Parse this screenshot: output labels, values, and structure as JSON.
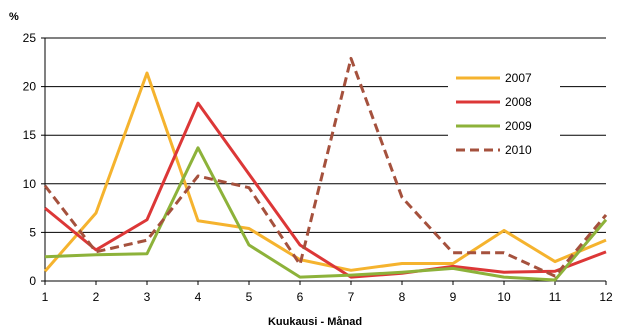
{
  "chart_data": {
    "type": "line",
    "title": "",
    "ylabel": "%",
    "xlabel": "Kuukausi - Månad",
    "x": [
      1,
      2,
      3,
      4,
      5,
      6,
      7,
      8,
      9,
      10,
      11,
      12
    ],
    "ylim": [
      0,
      25
    ],
    "yticks": [
      0,
      5,
      10,
      15,
      20,
      25
    ],
    "grid": "horizontal",
    "legend": "right",
    "series": [
      {
        "name": "2007",
        "color": "#F5B32E",
        "dash": "solid",
        "values": [
          1.0,
          7.0,
          21.4,
          6.2,
          5.4,
          2.2,
          1.1,
          1.8,
          1.8,
          5.2,
          2.0,
          4.2
        ]
      },
      {
        "name": "2008",
        "color": "#DC3737",
        "dash": "solid",
        "values": [
          7.5,
          3.2,
          6.3,
          18.3,
          11.0,
          3.7,
          0.4,
          0.8,
          1.5,
          0.9,
          1.0,
          3.0
        ]
      },
      {
        "name": "2009",
        "color": "#8DB23A",
        "dash": "solid",
        "values": [
          2.5,
          2.7,
          2.8,
          13.7,
          3.7,
          0.4,
          0.6,
          0.9,
          1.3,
          0.4,
          0.1,
          6.3
        ]
      },
      {
        "name": "2010",
        "color": "#A5513D",
        "dash": "dashed",
        "values": [
          9.8,
          3.0,
          4.2,
          10.8,
          9.6,
          1.7,
          22.9,
          8.6,
          2.9,
          2.9,
          0.5,
          6.8
        ]
      }
    ]
  }
}
